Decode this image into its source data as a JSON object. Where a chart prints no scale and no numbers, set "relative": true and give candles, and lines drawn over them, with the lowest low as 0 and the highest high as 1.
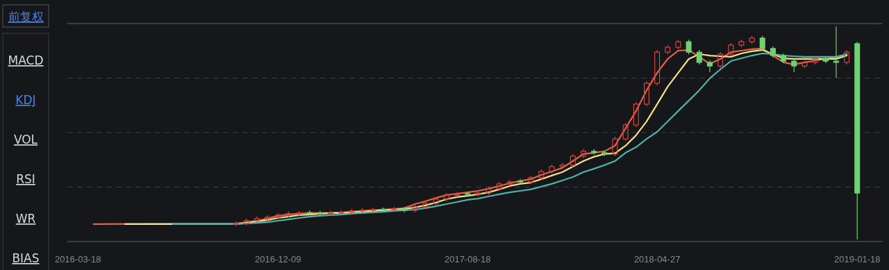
{
  "chart_data": {
    "type": "candlestick",
    "relative": true,
    "grid": "y",
    "xlim": [
      "2016-03-04",
      "2019-02-20"
    ],
    "xticks": [
      "2016-03-18",
      "2016-12-09",
      "2017-08-18",
      "2018-04-27",
      "2019-01-18"
    ],
    "annotations": [
      "前复权",
      "MACD",
      "KDJ",
      "VOL",
      "RSI",
      "WR",
      "BIAS"
    ],
    "x": [
      "2016-10-14",
      "2016-10-28",
      "2016-11-11",
      "2016-11-25",
      "2016-12-09",
      "2016-12-23",
      "2017-01-06",
      "2017-01-20",
      "2017-02-03",
      "2017-02-17",
      "2017-03-03",
      "2017-03-17",
      "2017-03-31",
      "2017-04-14",
      "2017-04-28",
      "2017-05-12",
      "2017-05-26",
      "2017-06-09",
      "2017-06-23",
      "2017-07-07",
      "2017-07-21",
      "2017-08-04",
      "2017-08-18",
      "2017-09-01",
      "2017-09-15",
      "2017-09-29",
      "2017-10-13",
      "2017-10-27",
      "2017-11-10",
      "2017-11-24",
      "2017-12-08",
      "2017-12-22",
      "2018-01-05",
      "2018-01-19",
      "2018-02-02",
      "2018-02-16",
      "2018-03-02",
      "2018-03-16",
      "2018-03-30",
      "2018-04-13",
      "2018-04-27",
      "2018-05-11",
      "2018-05-25",
      "2018-06-08",
      "2018-06-22",
      "2018-07-06",
      "2018-07-20",
      "2018-08-03",
      "2018-08-17",
      "2018-08-31",
      "2018-09-14",
      "2018-09-28",
      "2018-10-12",
      "2018-10-26",
      "2018-11-09",
      "2018-11-23",
      "2018-12-07",
      "2018-12-21",
      "2019-01-04",
      "2019-01-18"
    ],
    "ohlc": [
      [
        0.072,
        0.085,
        0.062,
        0.075
      ],
      [
        0.075,
        0.098,
        0.065,
        0.088
      ],
      [
        0.088,
        0.108,
        0.078,
        0.098
      ],
      [
        0.098,
        0.114,
        0.088,
        0.104
      ],
      [
        0.104,
        0.124,
        0.094,
        0.114
      ],
      [
        0.114,
        0.131,
        0.104,
        0.121
      ],
      [
        0.121,
        0.134,
        0.111,
        0.124
      ],
      [
        0.126,
        0.136,
        0.114,
        0.124
      ],
      [
        0.124,
        0.134,
        0.111,
        0.121
      ],
      [
        0.121,
        0.134,
        0.111,
        0.124
      ],
      [
        0.124,
        0.137,
        0.114,
        0.127
      ],
      [
        0.127,
        0.144,
        0.117,
        0.134
      ],
      [
        0.134,
        0.147,
        0.124,
        0.137
      ],
      [
        0.137,
        0.15,
        0.127,
        0.14
      ],
      [
        0.142,
        0.15,
        0.13,
        0.14
      ],
      [
        0.14,
        0.153,
        0.13,
        0.143
      ],
      [
        0.143,
        0.153,
        0.127,
        0.137
      ],
      [
        0.137,
        0.163,
        0.127,
        0.153
      ],
      [
        0.153,
        0.179,
        0.143,
        0.169
      ],
      [
        0.169,
        0.199,
        0.159,
        0.189
      ],
      [
        0.189,
        0.218,
        0.179,
        0.208
      ],
      [
        0.208,
        0.222,
        0.198,
        0.212
      ],
      [
        0.215,
        0.225,
        0.202,
        0.212
      ],
      [
        0.212,
        0.228,
        0.202,
        0.218
      ],
      [
        0.218,
        0.248,
        0.208,
        0.238
      ],
      [
        0.238,
        0.271,
        0.228,
        0.261
      ],
      [
        0.261,
        0.28,
        0.251,
        0.27
      ],
      [
        0.274,
        0.284,
        0.26,
        0.27
      ],
      [
        0.27,
        0.3,
        0.26,
        0.29
      ],
      [
        0.29,
        0.329,
        0.28,
        0.319
      ],
      [
        0.319,
        0.352,
        0.309,
        0.342
      ],
      [
        0.342,
        0.359,
        0.332,
        0.349
      ],
      [
        0.349,
        0.401,
        0.339,
        0.391
      ],
      [
        0.391,
        0.424,
        0.381,
        0.414
      ],
      [
        0.414,
        0.424,
        0.397,
        0.407
      ],
      [
        0.407,
        0.417,
        0.391,
        0.401
      ],
      [
        0.401,
        0.482,
        0.391,
        0.472
      ],
      [
        0.472,
        0.547,
        0.462,
        0.537
      ],
      [
        0.537,
        0.645,
        0.527,
        0.635
      ],
      [
        0.635,
        0.743,
        0.625,
        0.733
      ],
      [
        0.733,
        0.889,
        0.723,
        0.879
      ],
      [
        0.879,
        0.912,
        0.869,
        0.902
      ],
      [
        0.902,
        0.938,
        0.892,
        0.928
      ],
      [
        0.928,
        0.938,
        0.869,
        0.879
      ],
      [
        0.879,
        0.889,
        0.821,
        0.831
      ],
      [
        0.831,
        0.841,
        0.785,
        0.814
      ],
      [
        0.814,
        0.88,
        0.804,
        0.87
      ],
      [
        0.87,
        0.922,
        0.86,
        0.912
      ],
      [
        0.912,
        0.938,
        0.902,
        0.928
      ],
      [
        0.928,
        0.955,
        0.918,
        0.945
      ],
      [
        0.945,
        0.955,
        0.886,
        0.896
      ],
      [
        0.896,
        0.906,
        0.853,
        0.863
      ],
      [
        0.863,
        0.873,
        0.827,
        0.837
      ],
      [
        0.837,
        0.847,
        0.785,
        0.814
      ],
      [
        0.814,
        0.841,
        0.804,
        0.831
      ],
      [
        0.831,
        0.857,
        0.821,
        0.847
      ],
      [
        0.847,
        0.857,
        0.827,
        0.837
      ],
      [
        0.837,
        1.0,
        0.759,
        0.831
      ],
      [
        0.831,
        0.889,
        0.821,
        0.879
      ],
      [
        0.919,
        0.928,
        0,
        0.218
      ]
    ],
    "series": [
      {
        "type": "line",
        "color": "#e8604a",
        "x": [
          "2016-04-08",
          "2016-10-14",
          "2016-10-28",
          "2016-11-11",
          "2016-11-25",
          "2016-12-09",
          "2016-12-23",
          "2017-01-06",
          "2017-01-20",
          "2017-02-03",
          "2017-02-17",
          "2017-03-03",
          "2017-03-17",
          "2017-03-31",
          "2017-04-14",
          "2017-04-28",
          "2017-05-12",
          "2017-05-26",
          "2017-06-09",
          "2017-06-23",
          "2017-07-07",
          "2017-07-21",
          "2017-08-04",
          "2017-08-18",
          "2017-09-01",
          "2017-09-15",
          "2017-09-29",
          "2017-10-13",
          "2017-10-27",
          "2017-11-10",
          "2017-11-24",
          "2017-12-08",
          "2017-12-22",
          "2018-01-05",
          "2018-01-19",
          "2018-02-02",
          "2018-02-16",
          "2018-03-02",
          "2018-03-16",
          "2018-03-30",
          "2018-04-13",
          "2018-04-27",
          "2018-05-11",
          "2018-05-25",
          "2018-06-08",
          "2018-06-22",
          "2018-07-06",
          "2018-07-20",
          "2018-08-03",
          "2018-08-17",
          "2018-08-31",
          "2018-09-14",
          "2018-09-28",
          "2018-10-12",
          "2018-10-26",
          "2018-11-09",
          "2018-11-23",
          "2018-12-07",
          "2018-12-21",
          "2019-01-04"
        ],
        "values": [
          0.072,
          0.075,
          0.081,
          0.088,
          0.098,
          0.111,
          0.117,
          0.121,
          0.124,
          0.124,
          0.124,
          0.127,
          0.13,
          0.134,
          0.137,
          0.14,
          0.143,
          0.147,
          0.166,
          0.179,
          0.195,
          0.208,
          0.215,
          0.221,
          0.228,
          0.238,
          0.251,
          0.264,
          0.274,
          0.283,
          0.303,
          0.319,
          0.336,
          0.368,
          0.401,
          0.407,
          0.414,
          0.44,
          0.521,
          0.603,
          0.7,
          0.782,
          0.847,
          0.886,
          0.889,
          0.857,
          0.824,
          0.847,
          0.879,
          0.886,
          0.893,
          0.896,
          0.863,
          0.831,
          0.821,
          0.831,
          0.84,
          0.847,
          0.853,
          0.87
        ]
      },
      {
        "type": "line",
        "color": "#f3e08a",
        "x": [
          "2016-05-20",
          "2016-10-14",
          "2016-10-28",
          "2016-11-11",
          "2016-11-25",
          "2016-12-09",
          "2016-12-23",
          "2017-01-06",
          "2017-01-20",
          "2017-02-03",
          "2017-02-17",
          "2017-03-03",
          "2017-03-17",
          "2017-03-31",
          "2017-04-14",
          "2017-04-28",
          "2017-05-12",
          "2017-05-26",
          "2017-06-09",
          "2017-06-23",
          "2017-07-07",
          "2017-07-21",
          "2017-08-04",
          "2017-08-18",
          "2017-09-01",
          "2017-09-15",
          "2017-09-29",
          "2017-10-13",
          "2017-10-27",
          "2017-11-10",
          "2017-11-24",
          "2017-12-08",
          "2017-12-22",
          "2018-01-05",
          "2018-01-19",
          "2018-02-02",
          "2018-02-16",
          "2018-03-02",
          "2018-03-16",
          "2018-03-30",
          "2018-04-13",
          "2018-04-27",
          "2018-05-11",
          "2018-05-25",
          "2018-06-08",
          "2018-06-22",
          "2018-07-06",
          "2018-07-20",
          "2018-08-03",
          "2018-08-17",
          "2018-08-31",
          "2018-09-14",
          "2018-09-28",
          "2018-10-12",
          "2018-10-26",
          "2018-11-09",
          "2018-11-23",
          "2018-12-07",
          "2018-12-21",
          "2019-01-04"
        ],
        "values": [
          0.072,
          0.072,
          0.078,
          0.085,
          0.091,
          0.101,
          0.107,
          0.114,
          0.117,
          0.121,
          0.124,
          0.124,
          0.127,
          0.13,
          0.134,
          0.137,
          0.14,
          0.143,
          0.15,
          0.16,
          0.173,
          0.189,
          0.199,
          0.205,
          0.212,
          0.221,
          0.235,
          0.251,
          0.261,
          0.267,
          0.283,
          0.3,
          0.316,
          0.342,
          0.368,
          0.388,
          0.401,
          0.404,
          0.44,
          0.489,
          0.554,
          0.635,
          0.717,
          0.782,
          0.847,
          0.87,
          0.863,
          0.86,
          0.857,
          0.873,
          0.883,
          0.889,
          0.87,
          0.85,
          0.847,
          0.847,
          0.847,
          0.847,
          0.847,
          0.863
        ]
      },
      {
        "type": "line",
        "color": "#4fb3a6",
        "x": [
          "2016-07-22",
          "2016-10-14",
          "2016-10-28",
          "2016-11-11",
          "2016-11-25",
          "2016-12-09",
          "2016-12-23",
          "2017-01-06",
          "2017-01-20",
          "2017-02-03",
          "2017-02-17",
          "2017-03-03",
          "2017-03-17",
          "2017-03-31",
          "2017-04-14",
          "2017-04-28",
          "2017-05-12",
          "2017-05-26",
          "2017-06-09",
          "2017-06-23",
          "2017-07-07",
          "2017-07-21",
          "2017-08-04",
          "2017-08-18",
          "2017-09-01",
          "2017-09-15",
          "2017-09-29",
          "2017-10-13",
          "2017-10-27",
          "2017-11-10",
          "2017-11-24",
          "2017-12-08",
          "2017-12-22",
          "2018-01-05",
          "2018-01-19",
          "2018-02-02",
          "2018-02-16",
          "2018-03-02",
          "2018-03-16",
          "2018-03-30",
          "2018-04-13",
          "2018-04-27",
          "2018-05-11",
          "2018-05-25",
          "2018-06-08",
          "2018-06-22",
          "2018-07-06",
          "2018-07-20",
          "2018-08-03",
          "2018-08-17",
          "2018-08-31",
          "2018-09-14",
          "2018-09-28",
          "2018-10-12",
          "2018-10-26",
          "2018-11-09",
          "2018-11-23",
          "2018-12-07",
          "2018-12-21",
          "2019-01-04"
        ],
        "values": [
          0.072,
          0.072,
          0.075,
          0.078,
          0.081,
          0.088,
          0.094,
          0.101,
          0.107,
          0.111,
          0.114,
          0.117,
          0.121,
          0.124,
          0.127,
          0.13,
          0.134,
          0.137,
          0.14,
          0.147,
          0.156,
          0.166,
          0.176,
          0.186,
          0.192,
          0.202,
          0.212,
          0.221,
          0.228,
          0.235,
          0.248,
          0.261,
          0.277,
          0.293,
          0.316,
          0.332,
          0.349,
          0.368,
          0.407,
          0.433,
          0.472,
          0.505,
          0.554,
          0.603,
          0.651,
          0.7,
          0.756,
          0.798,
          0.837,
          0.85,
          0.863,
          0.873,
          0.87,
          0.863,
          0.86,
          0.857,
          0.857,
          0.857,
          0.857,
          0.87
        ]
      }
    ]
  }
}
